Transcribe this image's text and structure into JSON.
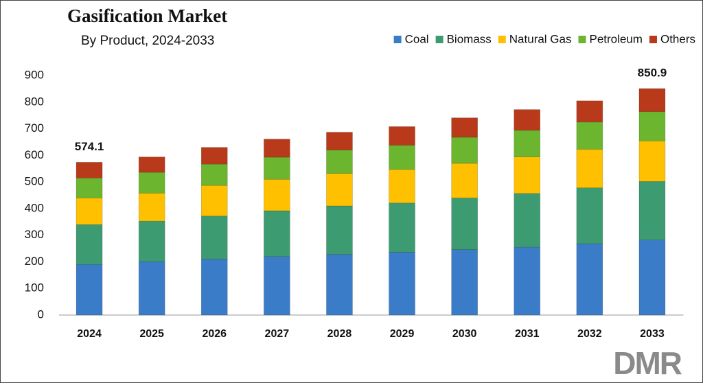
{
  "chart_data": {
    "type": "stacked_bar",
    "title": "Gasification Market",
    "subtitle": "By Product, 2024-2033",
    "categories": [
      "2024",
      "2025",
      "2026",
      "2027",
      "2028",
      "2029",
      "2030",
      "2031",
      "2032",
      "2033"
    ],
    "series": [
      {
        "name": "Coal",
        "color": "#3b7cc8",
        "values": [
          190,
          200,
          210,
          220,
          228,
          236,
          246,
          255,
          268,
          282
        ]
      },
      {
        "name": "Biomass",
        "color": "#3d9b72",
        "values": [
          150,
          153,
          162,
          172,
          182,
          185,
          194,
          202,
          210,
          220
        ]
      },
      {
        "name": "Natural Gas",
        "color": "#ffc000",
        "values": [
          100,
          105,
          115,
          118,
          122,
          126,
          130,
          137,
          145,
          152
        ]
      },
      {
        "name": "Petroleum",
        "color": "#6cb52f",
        "values": [
          75,
          78,
          80,
          83,
          88,
          91,
          98,
          100,
          102,
          110
        ]
      },
      {
        "name": "Others",
        "color": "#b83a1a",
        "values": [
          59.1,
          58,
          63,
          68,
          67,
          70,
          73,
          78,
          80,
          86.9
        ]
      }
    ],
    "totals": [
      574.1,
      null,
      null,
      null,
      null,
      null,
      null,
      null,
      null,
      850.9
    ],
    "ylim": [
      0,
      900
    ],
    "yticks": [
      0,
      100,
      200,
      300,
      400,
      500,
      600,
      700,
      800,
      900
    ],
    "grid": false,
    "legend": "top-right",
    "logo": "DMR"
  }
}
